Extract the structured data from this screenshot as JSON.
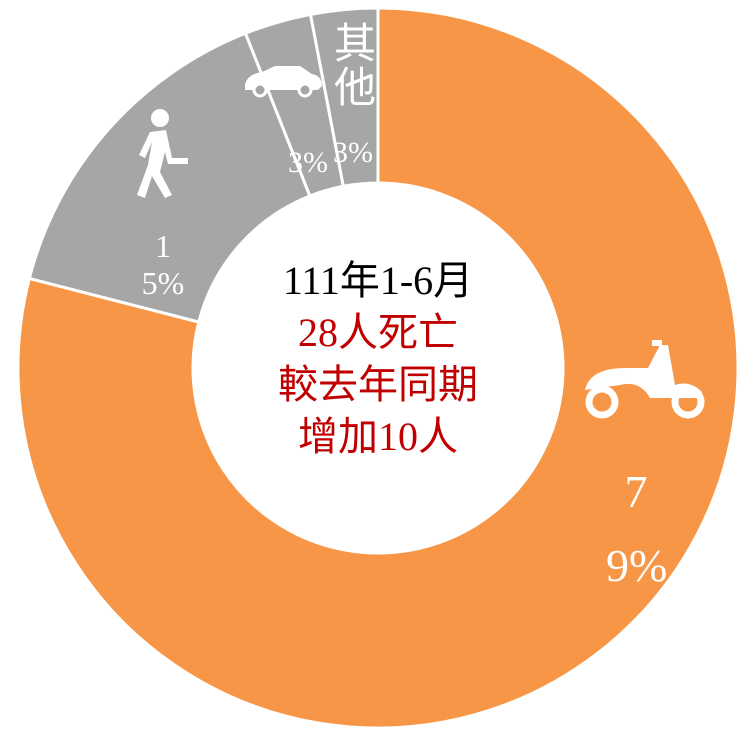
{
  "chart_data": {
    "type": "donut",
    "categories": [
      null,
      null,
      null,
      "其他"
    ],
    "values": [
      79,
      15,
      3,
      3
    ],
    "value_labels": [
      "79%",
      "15%",
      "3%",
      "3%"
    ],
    "colors": [
      "#F79646",
      "#A6A6A6",
      "#A6A6A6",
      "#A6A6A6"
    ],
    "center_text": [
      "111年1-6月",
      "28人死亡",
      "較去年同期",
      "增加10人"
    ],
    "center_colors": [
      "#000000",
      "#C00000",
      "#C00000",
      "#C00000"
    ]
  }
}
